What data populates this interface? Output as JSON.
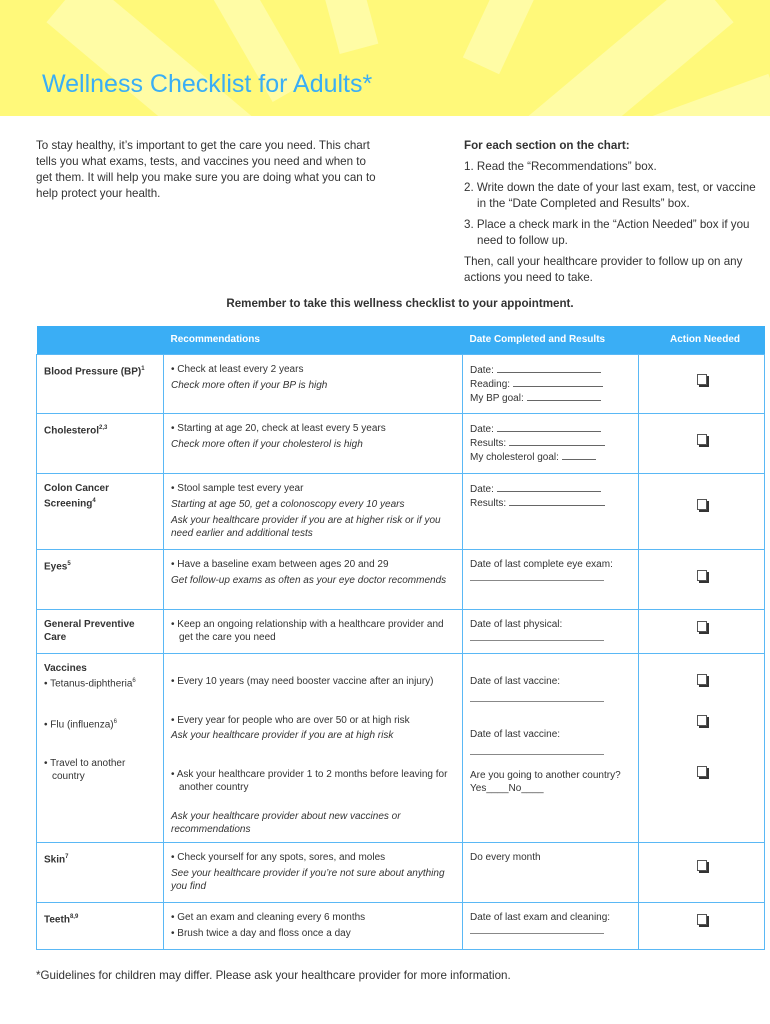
{
  "title": "Wellness Checklist for Adults*",
  "intro": "To stay healthy, it’s important to get the care you need. This chart tells you what exams, tests, and vaccines you need and when to get them. It will help you make sure you are doing what you can to help protect your health.",
  "instructions": {
    "heading": "For each section on the chart:",
    "steps": [
      "1. Read the “Recommendations” box.",
      "2. Write down the date of your last exam, test, or vaccine in the “Date Completed and Results” box.",
      "3. Place a check mark in the “Action Needed” box if you need to follow up."
    ],
    "closing": "Then, call your healthcare provider to follow up on any actions you need to take."
  },
  "reminder": "Remember to take this wellness checklist to your appointment.",
  "table": {
    "headers": [
      "",
      "Recommendations",
      "Date Completed and Results",
      "Action Needed"
    ],
    "rows": [
      {
        "label": "Blood Pressure (BP)",
        "sup": "1",
        "recs": [
          "• Check at least every 2 years"
        ],
        "notes": [
          "Check more often if your BP is high"
        ],
        "fields": [
          "Date:",
          "Reading:",
          "My BP goal:"
        ]
      },
      {
        "label": "Cholesterol",
        "sup": "2,3",
        "recs": [
          "• Starting at age 20, check at least every 5 years"
        ],
        "notes": [
          "Check more often if your cholesterol is high"
        ],
        "fields": [
          "Date:",
          "Results:",
          "My cholesterol goal:"
        ]
      },
      {
        "label": "Colon Cancer Screening",
        "sup": "4",
        "recs": [
          "• Stool sample test every year"
        ],
        "notes": [
          "Starting at age 50, get a colonoscopy every 10 years",
          "Ask your healthcare provider if you are at higher risk or if you need earlier and additional tests"
        ],
        "fields": [
          "Date:",
          "Results:"
        ]
      },
      {
        "label": "Eyes",
        "sup": "5",
        "recs": [
          "• Have a baseline exam between ages 20 and 29"
        ],
        "notes": [
          "Get follow-up exams as often as your eye doctor recommends"
        ],
        "fields": [
          "Date of last complete eye exam:"
        ]
      },
      {
        "label": "General Preventive Care",
        "sup": "",
        "recs": [
          "• Keep an ongoing relationship with a healthcare provider and get the care you need"
        ],
        "notes": [],
        "fields": [
          "Date of last physical:"
        ]
      },
      {
        "label": "Vaccines",
        "sub": [
          {
            "label": "• Tetanus-diphtheria",
            "sup": "6",
            "rec": "• Every 10 years (may need booster vaccine after an injury)",
            "note": "",
            "field": "Date of last vaccine:"
          },
          {
            "label": "• Flu (influenza)",
            "sup": "6",
            "rec": "• Every year for people who are over 50 or at high risk",
            "note": "Ask your healthcare provider if you are at high risk",
            "field": "Date of last vaccine:"
          },
          {
            "label": "• Travel to another country",
            "sup": "",
            "rec": "• Ask your healthcare provider 1 to 2 months before leaving for another country",
            "note": "Ask your healthcare provider about new vaccines or recommendations",
            "field": "Are you going to another country? Yes____No____"
          }
        ]
      },
      {
        "label": "Skin",
        "sup": "7",
        "recs": [
          "• Check yourself for any spots, sores, and moles"
        ],
        "notes": [
          "See your healthcare provider if you’re not sure about anything you find"
        ],
        "fields": [
          "Do every month"
        ]
      },
      {
        "label": "Teeth",
        "sup": "8,9",
        "recs": [
          "• Get an exam and cleaning every 6 months",
          "• Brush twice a day and floss once a day"
        ],
        "notes": [],
        "fields": [
          "Date of last exam and cleaning:"
        ]
      }
    ]
  },
  "footnote": "*Guidelines for children may differ. Please ask your healthcare provider for more information.",
  "colors": {
    "accent": "#3aaef5",
    "banner": "#fff97a"
  }
}
